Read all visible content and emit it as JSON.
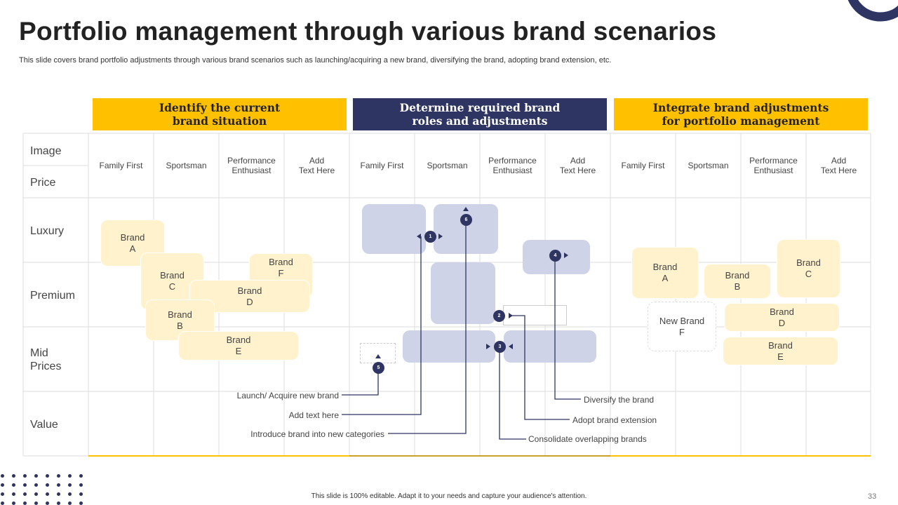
{
  "title": "Portfolio management through various brand scenarios",
  "subtitle": "This slide covers brand portfolio adjustments through various brand scenarios such as launching/acquiring a new brand, diversifying the brand, adopting brand extension, etc.",
  "colors": {
    "accent_yellow": "#FFC000",
    "accent_navy": "#2E3562",
    "brand_box": "#FFF2CC",
    "scenario_box": "#CFD3E8"
  },
  "headers": [
    "Identify the current\nbrand situation",
    "Determine required brand\nroles and adjustments",
    "Integrate brand adjustments\nfor portfolio management"
  ],
  "columns": [
    "Family First",
    "Sportsman",
    "Performance\nEnthusiast",
    "Add\nText Here",
    "Family First",
    "Sportsman",
    "Performance\nEnthusiast",
    "Add\nText Here",
    "Family First",
    "Sportsman",
    "Performance\nEnthusiast",
    "Add\nText Here"
  ],
  "axis": {
    "image": "Image",
    "price": "Price"
  },
  "rows": [
    "Luxury",
    "Premium",
    "Mid\nPrices",
    "Value"
  ],
  "current_brands": {
    "a": "Brand\nA",
    "c": "Brand\nC",
    "f": "Brand\nF",
    "d": "Brand\nD",
    "b": "Brand\nB",
    "e": "Brand\nE"
  },
  "integrated_brands": {
    "a": "Brand\nA",
    "b": "Brand\nB",
    "c": "Brand\nC",
    "new_f": "New Brand\nF",
    "d": "Brand\nD",
    "e": "Brand\nE"
  },
  "markers": [
    "1",
    "2",
    "3",
    "4",
    "5",
    "6"
  ],
  "callouts": {
    "launch": "Launch/ Acquire new brand",
    "add": "Add text here",
    "introduce": "Introduce brand into new categories",
    "diversify": "Diversify the brand",
    "extension": "Adopt brand extension",
    "consolidate": "Consolidate overlapping brands"
  },
  "footer": "This slide is 100% editable. Adapt it to your needs and capture your audience's attention.",
  "page_number": "33"
}
